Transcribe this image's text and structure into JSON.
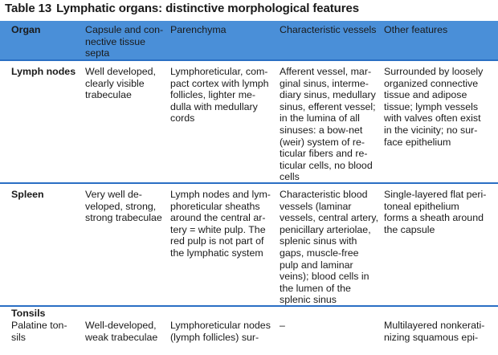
{
  "caption": {
    "number": "Table 13",
    "title": "Lymphatic organs: distinctive morphological features"
  },
  "table": {
    "headers": [
      [
        "Organ"
      ],
      [
        "Capsule and con-",
        "nective tissue",
        "septa"
      ],
      [
        "Parenchyma"
      ],
      [
        "Characteristic vessels"
      ],
      [
        "Other features"
      ]
    ],
    "rows": [
      {
        "organ": [
          "Lymph nodes"
        ],
        "capsule": [
          "Well developed,",
          "clearly visible",
          "trabeculae"
        ],
        "parenchyma": [
          "Lymphoreticular, com-",
          "pact cortex with lymph",
          "follicles, lighter me-",
          "dulla with medullary",
          "cords"
        ],
        "vessels": [
          "Afferent vessel, mar-",
          "ginal sinus, interme-",
          "diary sinus, medullary",
          "sinus, efferent vessel;",
          "in the lumina of all",
          "sinuses: a bow-net",
          "(weir) system of re-",
          "ticular fibers and re-",
          "ticular cells, no blood",
          "cells"
        ],
        "other": [
          "Surrounded by loosely",
          "organized connective",
          "tissue and adipose",
          "tissue; lymph vessels",
          "with valves often exist",
          "in the vicinity; no sur-",
          "face epithelium"
        ]
      },
      {
        "organ": [
          "Spleen"
        ],
        "capsule": [
          "Very well de-",
          "veloped, strong,",
          "strong trabeculae"
        ],
        "parenchyma": [
          "Lymph nodes and lym-",
          "phoreticular sheaths",
          "around the central ar-",
          "tery = white pulp. The",
          "red pulp is not part of",
          "the lymphatic system"
        ],
        "vessels": [
          "Characteristic blood",
          "vessels (laminar",
          "vessels, central artery,",
          "penicillary arteriolae,",
          "splenic sinus with",
          "gaps, muscle-free",
          "pulp and laminar",
          "veins); blood cells in",
          "the lumen of the",
          "splenic sinus"
        ],
        "other": [
          "Single-layered flat peri-",
          "toneal epithelium",
          "forms a sheath around",
          "the capsule"
        ]
      },
      {
        "organ": [
          "Tonsils"
        ],
        "suborgan": [
          "Palatine ton-",
          "sils"
        ],
        "capsule": [
          "Well-developed,",
          "weak trabeculae"
        ],
        "parenchyma": [
          "Lymphoreticular nodes",
          "(lymph follicles) sur-"
        ],
        "vessels": [
          "–"
        ],
        "other": [
          "Multilayered nonkerati-",
          "nizing squamous epi-"
        ]
      }
    ]
  }
}
